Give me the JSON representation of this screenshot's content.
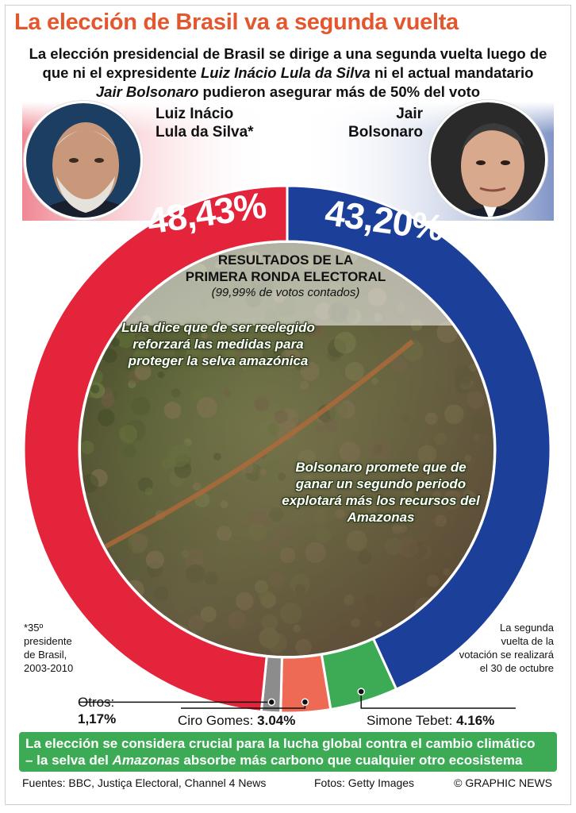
{
  "header": {
    "title": "La elección de Brasil va a segunda vuelta",
    "lead_1": "La elección presidencial de Brasil se dirige a una segunda vuelta luego de",
    "lead_2a": "que ni el expresidente ",
    "lead_2b": "Luiz Inácio Lula da Silva",
    "lead_2c": " ni el actual mandatario",
    "lead_3a": "Jair Bolsonaro",
    "lead_3b": " pudieron asegurar más de 50% del voto"
  },
  "candidates": {
    "lula": {
      "name_1": "Luiz Inácio",
      "name_2": "Lula da Silva*",
      "pct_text": "48,43%",
      "note": "Lula dice que de ser reelegido reforzará las medidas para proteger la selva amazónica",
      "footnote_1": "*35º",
      "footnote_2": "presidente",
      "footnote_3": "de Brasil,",
      "footnote_4": "2003-2010"
    },
    "bolsonaro": {
      "name_1": "Jair",
      "name_2": "Bolsonaro",
      "pct_text": "43,20%",
      "note": "Bolsonaro promete que de ganar un segundo periodo explotará más los recursos del Amazonas"
    }
  },
  "center": {
    "title_1": "RESULTADOS DE LA",
    "title_2": "PRIMERA RONDA ELECTORAL",
    "subtitle": "(99,99% de votos contados)"
  },
  "runoff_note": {
    "l1": "La segunda",
    "l2": "vuelta de la",
    "l3": "votación se realizará",
    "l4": "el 30 de octubre"
  },
  "labels": {
    "otros_name": "Otros:",
    "otros_value": "1,17%",
    "ciro_name": "Ciro Gomes: ",
    "ciro_value": "3.04%",
    "simone_name": "Simone Tebet: ",
    "simone_value": "4.16%"
  },
  "banner": {
    "line_1": "La elección se considera crucial para la lucha global contra el cambio climático",
    "line_2a": "– la selva del ",
    "line_2b": "Amazonas",
    "line_2c": " absorbe más carbono que cualquier otro ecosistema"
  },
  "footer": {
    "sources": "Fuentes: BBC, Justiça Electoral, Channel 4 News",
    "photos": "Fotos: Getty Images",
    "brand": "© GRAPHIC NEWS"
  },
  "chart_data": {
    "type": "pie",
    "style": "donut",
    "title": "RESULTADOS DE LA PRIMERA RONDA ELECTORAL",
    "subtitle": "(99,99% de votos contados)",
    "slices": [
      {
        "name": "Jair Bolsonaro",
        "value": 43.2,
        "color": "#1c3f9a"
      },
      {
        "name": "Simone Tebet",
        "value": 4.16,
        "color": "#3daa55"
      },
      {
        "name": "Ciro Gomes",
        "value": 3.04,
        "color": "#ef6a55"
      },
      {
        "name": "Otros",
        "value": 1.17,
        "color": "#8c8c8c"
      },
      {
        "name": "Luiz Inácio Lula da Silva",
        "value": 48.43,
        "color": "#e3243b"
      }
    ]
  }
}
